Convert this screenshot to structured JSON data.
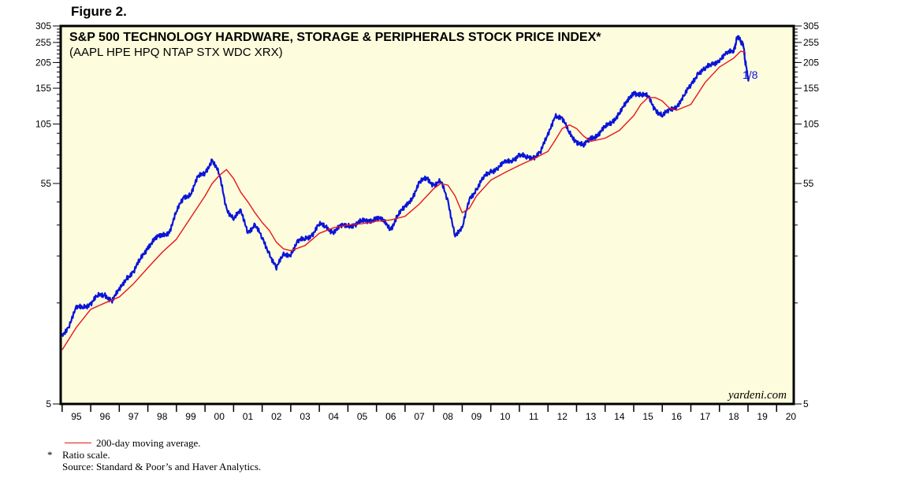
{
  "figure_label": "Figure 2.",
  "chart_data": {
    "type": "line",
    "title": "S&P 500 TECHNOLOGY HARDWARE, STORAGE & PERIPHERALS STOCK PRICE INDEX*",
    "subtitle": "(AAPL HPE HPQ NTAP STX WDC XRX)",
    "scale": "log",
    "ylim": [
      5,
      305
    ],
    "y_ticks": [
      5,
      55,
      105,
      155,
      205,
      255,
      305
    ],
    "y_tick_labels": [
      "5",
      "55",
      "105",
      "155",
      "205",
      "255",
      "305"
    ],
    "x_ticks": [
      1995,
      1996,
      1997,
      1998,
      1999,
      2000,
      2001,
      2002,
      2003,
      2004,
      2005,
      2006,
      2007,
      2008,
      2009,
      2010,
      2011,
      2012,
      2013,
      2014,
      2015,
      2016,
      2017,
      2018,
      2019,
      2020
    ],
    "x_tick_labels": [
      "95",
      "96",
      "97",
      "98",
      "99",
      "00",
      "01",
      "02",
      "03",
      "04",
      "05",
      "06",
      "07",
      "08",
      "09",
      "10",
      "11",
      "12",
      "13",
      "14",
      "15",
      "16",
      "17",
      "18",
      "19",
      "20"
    ],
    "xlim": [
      1994.95,
      2020.6
    ],
    "annotation": "1/8",
    "watermark": "yardeni.com",
    "series": [
      {
        "name": "Index",
        "color": "#0a14d9",
        "x": [
          1995.0,
          1995.25,
          1995.5,
          1995.75,
          1996.0,
          1996.25,
          1996.5,
          1996.75,
          1997.0,
          1997.25,
          1997.5,
          1997.75,
          1998.0,
          1998.25,
          1998.5,
          1998.75,
          1999.0,
          1999.25,
          1999.5,
          1999.75,
          2000.0,
          2000.25,
          2000.5,
          2000.75,
          2001.0,
          2001.25,
          2001.5,
          2001.75,
          2002.0,
          2002.25,
          2002.5,
          2002.75,
          2003.0,
          2003.25,
          2003.5,
          2003.75,
          2004.0,
          2004.25,
          2004.5,
          2004.75,
          2005.0,
          2005.25,
          2005.5,
          2005.75,
          2006.0,
          2006.25,
          2006.5,
          2006.75,
          2007.0,
          2007.25,
          2007.5,
          2007.75,
          2008.0,
          2008.25,
          2008.5,
          2008.75,
          2009.0,
          2009.25,
          2009.5,
          2009.75,
          2010.0,
          2010.25,
          2010.5,
          2010.75,
          2011.0,
          2011.25,
          2011.5,
          2011.75,
          2012.0,
          2012.25,
          2012.5,
          2012.75,
          2013.0,
          2013.25,
          2013.5,
          2013.75,
          2014.0,
          2014.25,
          2014.5,
          2014.75,
          2015.0,
          2015.25,
          2015.5,
          2015.75,
          2016.0,
          2016.25,
          2016.5,
          2016.75,
          2017.0,
          2017.25,
          2017.5,
          2017.75,
          2018.0,
          2018.25,
          2018.5,
          2018.6,
          2018.75,
          2018.85,
          2018.92,
          2019.02
        ],
        "values": [
          10.5,
          12.0,
          14.0,
          14.5,
          15.0,
          16.0,
          16.5,
          15.5,
          17.0,
          20.0,
          21.0,
          24.0,
          28.0,
          30.0,
          31.0,
          33.0,
          40.0,
          47.0,
          50.0,
          58.0,
          62.0,
          72.0,
          60.0,
          42.0,
          38.0,
          40.0,
          33.0,
          35.0,
          30.0,
          26.0,
          22.0,
          25.0,
          26.0,
          29.0,
          30.0,
          32.0,
          35.0,
          34.0,
          33.0,
          34.0,
          35.0,
          35.5,
          36.0,
          37.0,
          38.0,
          36.0,
          34.0,
          39.0,
          42.0,
          48.0,
          55.0,
          58.0,
          55.0,
          56.0,
          45.0,
          32.0,
          33.0,
          47.0,
          52.0,
          58.0,
          63.0,
          66.0,
          68.0,
          72.0,
          75.0,
          72.0,
          74.0,
          78.0,
          92.0,
          118.0,
          110.0,
          95.0,
          88.0,
          82.0,
          90.0,
          95.0,
          100.0,
          108.0,
          120.0,
          130.0,
          150.0,
          145.0,
          140.0,
          125.0,
          115.0,
          120.0,
          130.0,
          140.0,
          160.0,
          185.0,
          190.0,
          200.0,
          215.0,
          222.0,
          235.0,
          265.0,
          260.0,
          240.0,
          200.0,
          172.0
        ]
      },
      {
        "name": "200-day moving average.",
        "color": "#e8141b",
        "x": [
          1995.0,
          1995.5,
          1996.0,
          1996.5,
          1997.0,
          1997.5,
          1998.0,
          1998.5,
          1999.0,
          1999.5,
          2000.0,
          2000.25,
          2000.5,
          2000.75,
          2001.0,
          2001.25,
          2001.5,
          2001.75,
          2002.0,
          2002.25,
          2002.5,
          2002.75,
          2003.0,
          2003.5,
          2004.0,
          2004.5,
          2005.0,
          2005.5,
          2006.0,
          2006.5,
          2007.0,
          2007.5,
          2008.0,
          2008.25,
          2008.5,
          2008.75,
          2009.0,
          2009.25,
          2009.5,
          2010.0,
          2010.5,
          2011.0,
          2011.5,
          2012.0,
          2012.25,
          2012.5,
          2012.75,
          2013.0,
          2013.25,
          2013.5,
          2014.0,
          2014.5,
          2015.0,
          2015.25,
          2015.5,
          2015.75,
          2016.0,
          2016.25,
          2016.5,
          2017.0,
          2017.5,
          2018.0,
          2018.5,
          2018.75,
          2018.92
        ],
        "values": [
          9.0,
          11.5,
          14.0,
          15.0,
          16.0,
          18.5,
          22.0,
          26.0,
          30.0,
          38.0,
          48.0,
          55.0,
          60.0,
          64.0,
          58.0,
          50.0,
          45.0,
          40.0,
          36.0,
          33.0,
          29.0,
          27.0,
          26.5,
          28.0,
          32.0,
          34.0,
          35.0,
          35.5,
          36.5,
          37.0,
          38.5,
          44.0,
          52.0,
          55.0,
          54.0,
          48.0,
          40.0,
          42.0,
          48.0,
          57.0,
          62.0,
          67.0,
          72.0,
          78.0,
          88.0,
          100.0,
          104.0,
          100.0,
          92.0,
          87.0,
          90.0,
          98.0,
          115.0,
          130.0,
          140.0,
          140.0,
          135.0,
          125.0,
          122.0,
          130.0,
          165.0,
          195.0,
          215.0,
          232.0,
          228.0
        ]
      }
    ]
  },
  "legend_label": "200-day moving average.",
  "note_star": "*",
  "note_text": "Ratio scale.",
  "source_text": "Source: Standard & Poor’s and Haver Analytics."
}
